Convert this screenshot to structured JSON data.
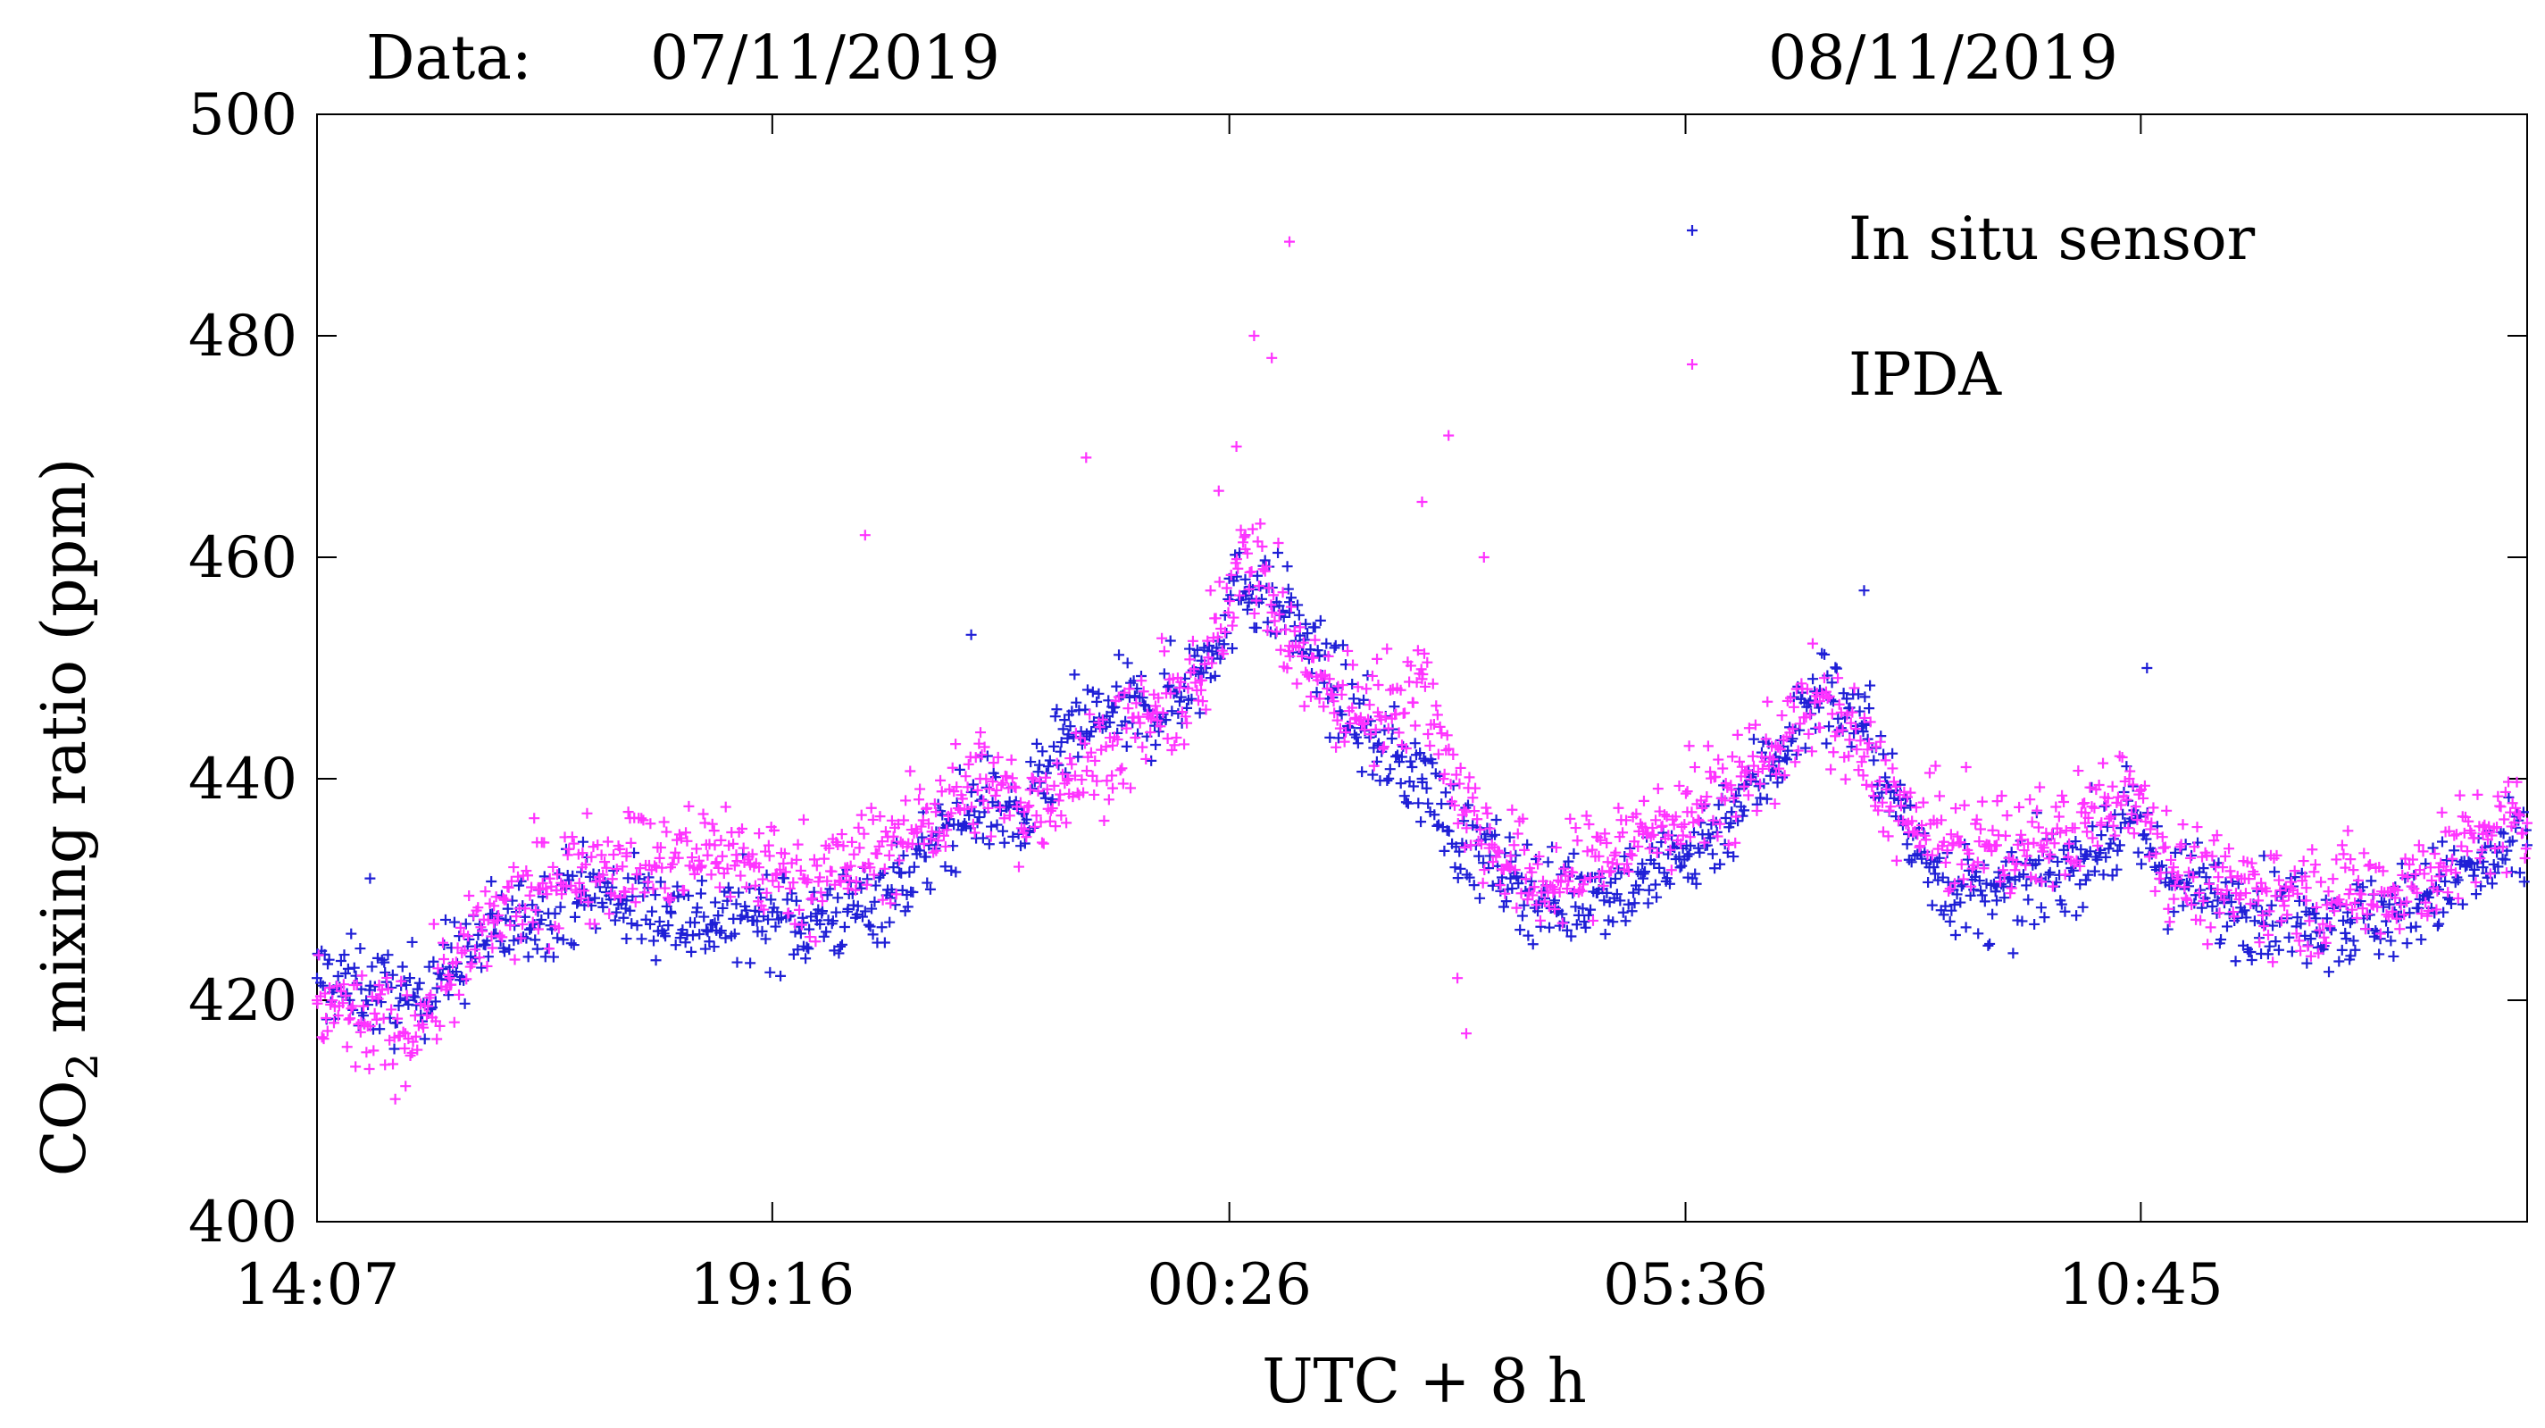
{
  "header": {
    "date_prefix": "Data:",
    "date_1": "07/11/2019",
    "date_2": "08/11/2019"
  },
  "chart_data": {
    "type": "scatter",
    "title": "",
    "xlabel": "UTC + 8 h",
    "ylabel_main": "CO",
    "ylabel_sub": "2",
    "ylabel_rest": " mixing ratio (ppm)",
    "x_unit": "hours since 14:07 (local UTC+8)",
    "xlim": [
      0,
      25.0
    ],
    "ylim": [
      400,
      500
    ],
    "yticks": [
      "400",
      "420",
      "440",
      "460",
      "480",
      "500"
    ],
    "xticks": [
      {
        "label": "14:07",
        "x": 0
      },
      {
        "label": "19:16",
        "x": 5.15
      },
      {
        "label": "00:26",
        "x": 10.32
      },
      {
        "label": "05:36",
        "x": 15.48
      },
      {
        "label": "10:45",
        "x": 20.63
      }
    ],
    "grid": false,
    "legend_position": "top-right",
    "marker": "+",
    "series": [
      {
        "name": "In situ sensor",
        "color": "#1f1fd6",
        "points": [
          [
            0.0,
            422
          ],
          [
            0.5,
            421
          ],
          [
            1.0,
            420
          ],
          [
            1.5,
            423
          ],
          [
            2.0,
            426
          ],
          [
            2.5,
            428
          ],
          [
            3.0,
            430
          ],
          [
            3.5,
            429
          ],
          [
            4.0,
            428
          ],
          [
            4.5,
            427
          ],
          [
            5.0,
            428
          ],
          [
            5.5,
            427
          ],
          [
            6.0,
            428
          ],
          [
            6.5,
            430
          ],
          [
            7.0,
            434
          ],
          [
            7.5,
            438
          ],
          [
            8.0,
            436
          ],
          [
            8.5,
            444
          ],
          [
            9.0,
            446
          ],
          [
            9.5,
            446
          ],
          [
            10.0,
            450
          ],
          [
            10.5,
            458
          ],
          [
            11.0,
            455
          ],
          [
            11.5,
            448
          ],
          [
            12.0,
            443
          ],
          [
            12.5,
            440
          ],
          [
            13.0,
            434
          ],
          [
            13.5,
            431
          ],
          [
            14.0,
            429
          ],
          [
            14.5,
            430
          ],
          [
            15.0,
            431
          ],
          [
            15.5,
            433
          ],
          [
            16.0,
            437
          ],
          [
            16.5,
            442
          ],
          [
            17.0,
            448
          ],
          [
            17.5,
            445
          ],
          [
            18.0,
            435
          ],
          [
            18.5,
            430
          ],
          [
            19.0,
            429
          ],
          [
            19.5,
            431
          ],
          [
            20.0,
            433
          ],
          [
            20.5,
            436
          ],
          [
            21.0,
            431
          ],
          [
            21.5,
            429
          ],
          [
            22.0,
            428
          ],
          [
            22.5,
            428
          ],
          [
            23.0,
            427
          ],
          [
            23.5,
            428
          ],
          [
            24.0,
            430
          ],
          [
            24.5,
            432
          ],
          [
            25.0,
            434
          ]
        ]
      },
      {
        "name": "IPDA",
        "color": "#ff33ff",
        "points": [
          [
            0.0,
            420
          ],
          [
            0.5,
            418
          ],
          [
            1.0,
            417
          ],
          [
            1.5,
            422
          ],
          [
            2.0,
            427
          ],
          [
            2.5,
            430
          ],
          [
            3.0,
            432
          ],
          [
            3.5,
            433
          ],
          [
            4.0,
            432
          ],
          [
            4.5,
            434
          ],
          [
            5.0,
            432
          ],
          [
            5.5,
            431
          ],
          [
            6.0,
            432
          ],
          [
            6.5,
            434
          ],
          [
            7.0,
            437
          ],
          [
            7.5,
            440
          ],
          [
            8.0,
            437
          ],
          [
            8.5,
            440
          ],
          [
            9.0,
            443
          ],
          [
            9.5,
            446
          ],
          [
            10.0,
            448
          ],
          [
            10.5,
            462
          ],
          [
            11.0,
            452
          ],
          [
            11.5,
            447
          ],
          [
            12.0,
            446
          ],
          [
            12.5,
            449
          ],
          [
            13.0,
            437
          ],
          [
            13.5,
            432
          ],
          [
            14.0,
            430
          ],
          [
            14.5,
            433
          ],
          [
            15.0,
            435
          ],
          [
            15.5,
            437
          ],
          [
            16.0,
            439
          ],
          [
            16.5,
            443
          ],
          [
            17.0,
            447
          ],
          [
            17.5,
            442
          ],
          [
            18.0,
            436
          ],
          [
            18.5,
            434
          ],
          [
            19.0,
            434
          ],
          [
            19.5,
            434
          ],
          [
            20.0,
            436
          ],
          [
            20.5,
            440
          ],
          [
            21.0,
            432
          ],
          [
            21.5,
            430
          ],
          [
            22.0,
            430
          ],
          [
            22.5,
            429
          ],
          [
            23.0,
            430
          ],
          [
            23.5,
            430
          ],
          [
            24.0,
            432
          ],
          [
            24.5,
            435
          ],
          [
            25.0,
            436
          ]
        ]
      }
    ],
    "outliers": {
      "IPDA": [
        [
          10.2,
          466
        ],
        [
          10.4,
          470
        ],
        [
          10.6,
          480
        ],
        [
          10.8,
          478
        ],
        [
          11.0,
          488.5
        ],
        [
          8.7,
          469
        ],
        [
          6.2,
          462
        ],
        [
          12.5,
          465
        ],
        [
          12.8,
          471
        ],
        [
          13.2,
          460
        ],
        [
          12.9,
          422
        ],
        [
          13.0,
          417
        ]
      ],
      "In situ sensor": [
        [
          10.5,
          462
        ],
        [
          17.5,
          457
        ],
        [
          20.7,
          450
        ],
        [
          7.4,
          453
        ],
        [
          0.6,
          431
        ]
      ]
    }
  }
}
